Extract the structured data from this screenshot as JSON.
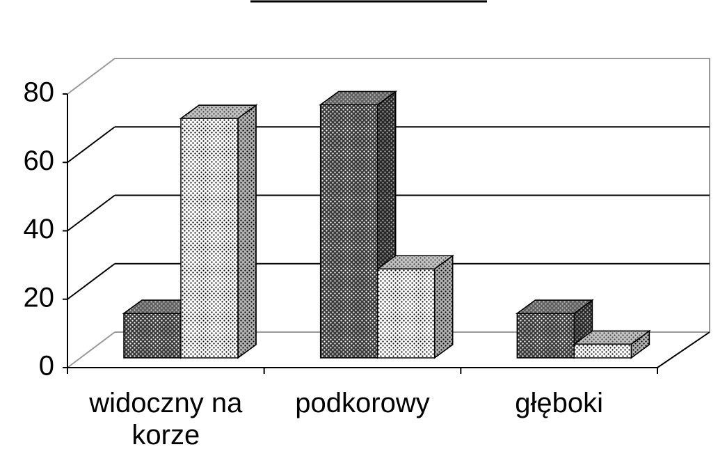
{
  "chart_data": {
    "type": "bar3d",
    "categories": [
      "widoczny na korze",
      "podkorowy",
      "głęboki"
    ],
    "series": [
      {
        "color": "#3a3a3a",
        "values": [
          13,
          74,
          13
        ]
      },
      {
        "color": "#ffffff",
        "values": [
          70,
          26,
          4
        ]
      }
    ],
    "ylim": [
      0,
      80
    ],
    "yticks": [
      0,
      20,
      40,
      60,
      80
    ],
    "grid": true
  }
}
